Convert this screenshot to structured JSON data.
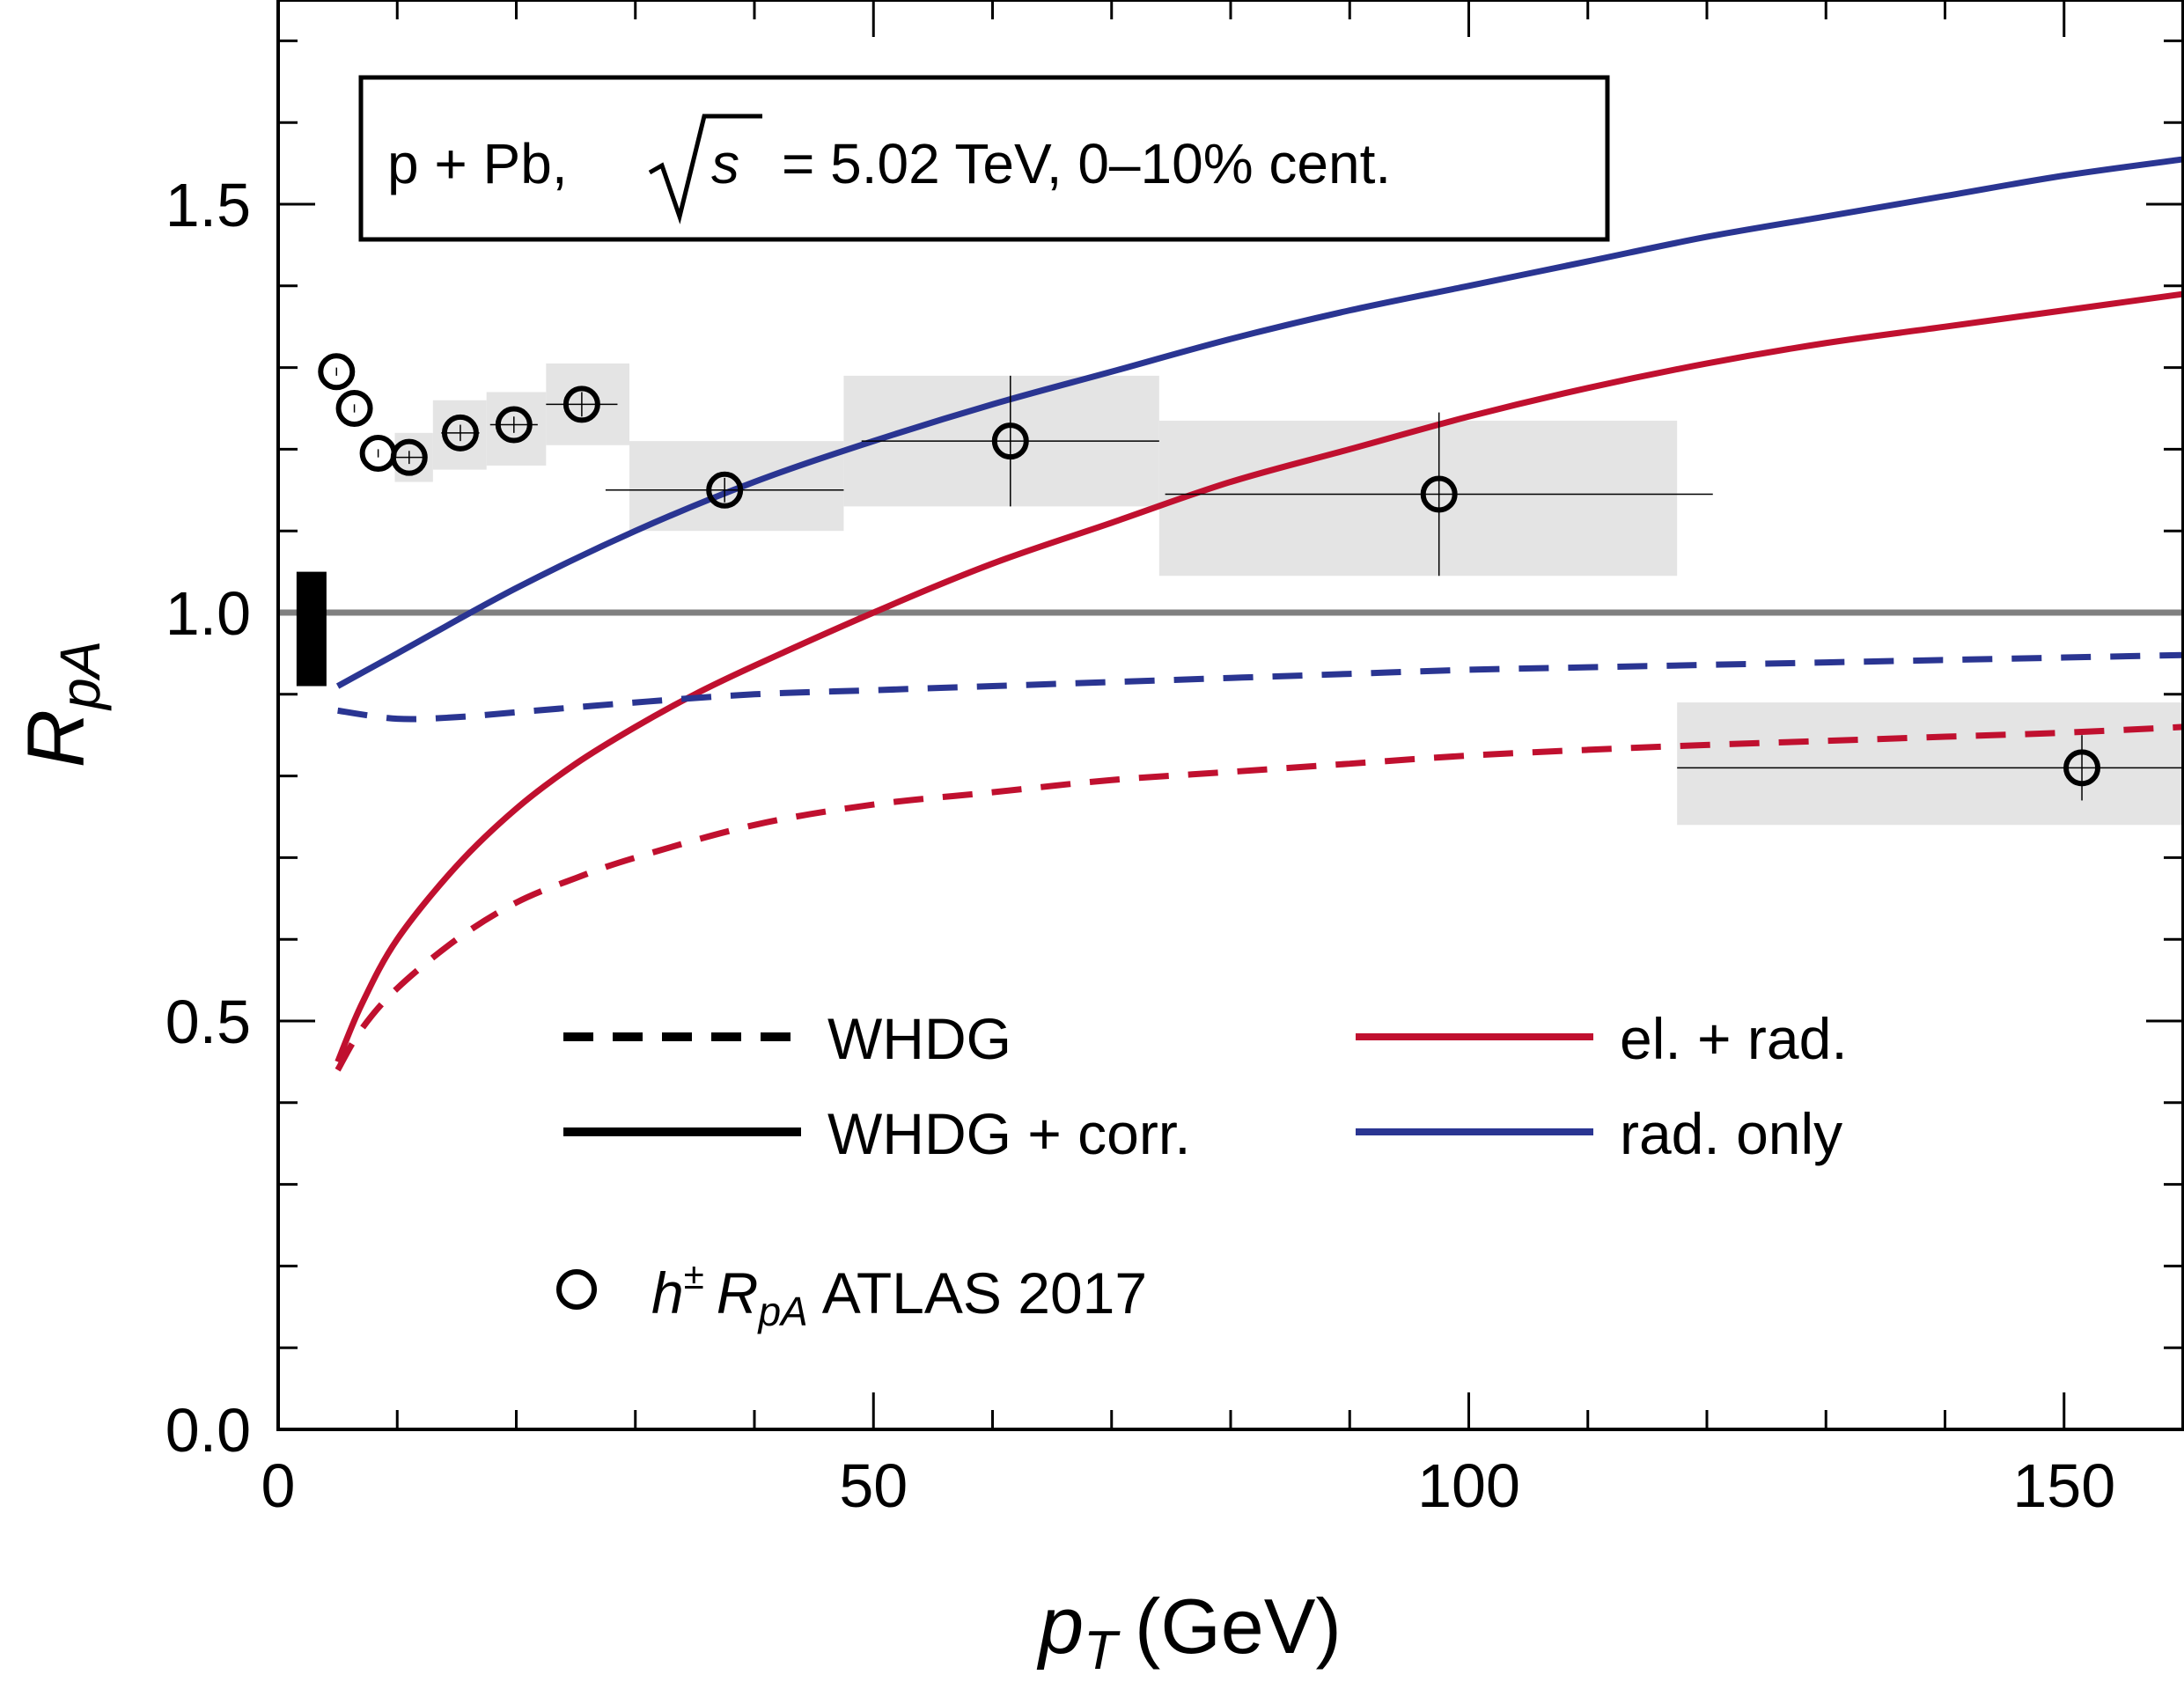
{
  "chart_data": {
    "type": "line",
    "xlabel_main": "p",
    "xlabel_sub": "T",
    "xlabel_unit": "(GeV)",
    "ylabel_main": "R",
    "ylabel_sub": "pA",
    "xlim": [
      0,
      160
    ],
    "ylim": [
      0,
      1.75
    ],
    "xticks": [
      0,
      50,
      100,
      150
    ],
    "xtick_labels": [
      "0",
      "50",
      "100",
      "150"
    ],
    "xminor_step": 10,
    "yticks": [
      0.0,
      0.5,
      1.0,
      1.5
    ],
    "ytick_labels": [
      "0.0",
      "0.5",
      "1.0",
      "1.5"
    ],
    "yminor_step": 0.1,
    "info_box": {
      "prefix": "p + Pb,",
      "sqrt_arg": "s",
      "suffix": "= 5.02 TeV, 0–10% cent."
    },
    "reference_line": {
      "y": 1.0,
      "color": "#808080"
    },
    "norm_uncertainty": {
      "x": 2.8,
      "y_low": 0.91,
      "y_high": 1.05
    },
    "series": [
      {
        "name": "rad. only, WHDG + corr.",
        "color": "#2a3592",
        "dash": false,
        "x": [
          5,
          10,
          20,
          30,
          40,
          50,
          60,
          70,
          80,
          90,
          100,
          110,
          120,
          130,
          140,
          150,
          160
        ],
        "y": [
          0.91,
          0.95,
          1.03,
          1.1,
          1.16,
          1.21,
          1.255,
          1.295,
          1.335,
          1.37,
          1.4,
          1.43,
          1.46,
          1.485,
          1.51,
          1.535,
          1.555
        ]
      },
      {
        "name": "el. + rad., WHDG + corr.",
        "color": "#c0102f",
        "dash": false,
        "x": [
          5,
          7,
          10,
          15,
          20,
          25,
          30,
          35,
          40,
          50,
          60,
          70,
          80,
          90,
          100,
          110,
          120,
          130,
          140,
          150,
          160
        ],
        "y": [
          0.45,
          0.52,
          0.6,
          0.69,
          0.76,
          0.815,
          0.86,
          0.9,
          0.935,
          1.0,
          1.06,
          1.11,
          1.16,
          1.2,
          1.24,
          1.275,
          1.305,
          1.33,
          1.35,
          1.37,
          1.39
        ]
      },
      {
        "name": "rad. only, WHDG",
        "color": "#2a3592",
        "dash": true,
        "x": [
          5,
          10,
          15,
          20,
          30,
          40,
          50,
          60,
          70,
          80,
          90,
          100,
          110,
          120,
          130,
          140,
          150,
          160
        ],
        "y": [
          0.88,
          0.87,
          0.872,
          0.878,
          0.89,
          0.9,
          0.905,
          0.91,
          0.915,
          0.92,
          0.925,
          0.93,
          0.933,
          0.936,
          0.939,
          0.942,
          0.945,
          0.948
        ]
      },
      {
        "name": "el. + rad., WHDG",
        "color": "#c0102f",
        "dash": true,
        "x": [
          5,
          7,
          10,
          15,
          20,
          25,
          30,
          40,
          50,
          60,
          70,
          80,
          90,
          100,
          110,
          120,
          130,
          140,
          150,
          160
        ],
        "y": [
          0.44,
          0.49,
          0.54,
          0.6,
          0.645,
          0.675,
          0.7,
          0.74,
          0.765,
          0.78,
          0.795,
          0.805,
          0.815,
          0.825,
          0.832,
          0.838,
          0.843,
          0.848,
          0.853,
          0.86
        ]
      }
    ],
    "data_points": {
      "name": "h± RpA ATLAS 2017",
      "points": [
        {
          "x": 4.9,
          "y": 1.295,
          "xerr": 0,
          "yerr": 0.005,
          "sys_xlow": 4.9,
          "sys_xhigh": 4.9,
          "sys_ylow": 1.295,
          "sys_yhigh": 1.295
        },
        {
          "x": 6.4,
          "y": 1.25,
          "xerr": 0,
          "yerr": 0.005,
          "sys_xlow": 6.4,
          "sys_xhigh": 6.4,
          "sys_ylow": 1.25,
          "sys_yhigh": 1.25
        },
        {
          "x": 8.4,
          "y": 1.195,
          "xerr": 0,
          "yerr": 0.005,
          "sys_xlow": 8.4,
          "sys_xhigh": 8.4,
          "sys_ylow": 1.195,
          "sys_yhigh": 1.195
        },
        {
          "x": 11.0,
          "y": 1.19,
          "xerr": 1.2,
          "yerr": 0.008,
          "sys_xlow": 9.8,
          "sys_xhigh": 13.0,
          "sys_ylow": 1.16,
          "sys_yhigh": 1.22
        },
        {
          "x": 15.3,
          "y": 1.22,
          "xerr": 1.6,
          "yerr": 0.01,
          "sys_xlow": 13.0,
          "sys_xhigh": 17.5,
          "sys_ylow": 1.175,
          "sys_yhigh": 1.26
        },
        {
          "x": 19.8,
          "y": 1.23,
          "xerr": 2.0,
          "yerr": 0.01,
          "sys_xlow": 17.5,
          "sys_xhigh": 22.5,
          "sys_ylow": 1.18,
          "sys_yhigh": 1.27
        },
        {
          "x": 25.5,
          "y": 1.255,
          "xerr": 3.0,
          "yerr": 0.015,
          "sys_xlow": 22.5,
          "sys_xhigh": 29.5,
          "sys_ylow": 1.205,
          "sys_yhigh": 1.305
        },
        {
          "x": 37.5,
          "y": 1.15,
          "xerr": 10.0,
          "yerr": 0.015,
          "sys_xlow": 29.5,
          "sys_xhigh": 47.5,
          "sys_ylow": 1.1,
          "sys_yhigh": 1.21
        },
        {
          "x": 61.5,
          "y": 1.21,
          "xerr": 12.5,
          "yerr": 0.08,
          "sys_xlow": 47.5,
          "sys_xhigh": 74.0,
          "sys_ylow": 1.13,
          "sys_yhigh": 1.29
        },
        {
          "x": 97.5,
          "y": 1.145,
          "xerr": 23.0,
          "yerr": 0.1,
          "sys_xlow": 74.0,
          "sys_xhigh": 117.5,
          "sys_ylow": 1.045,
          "sys_yhigh": 1.235
        },
        {
          "x": 151.5,
          "y": 0.81,
          "xerr": 34.0,
          "yerr": 0.04,
          "sys_xlow": 117.5,
          "sys_xhigh": 160.0,
          "sys_ylow": 0.74,
          "sys_yhigh": 0.89
        }
      ]
    },
    "legend": {
      "style_entries": [
        {
          "label": "WHDG",
          "dash": true
        },
        {
          "label": "WHDG + corr.",
          "dash": false
        }
      ],
      "color_entries": [
        {
          "label": "el. + rad.",
          "color": "#c0102f"
        },
        {
          "label": "rad. only",
          "color": "#2a3592"
        }
      ],
      "data_entry": {
        "symbol": "h",
        "superscript": "±",
        "r_main": "R",
        "r_sub": "pA",
        "text": "ATLAS 2017"
      }
    }
  }
}
